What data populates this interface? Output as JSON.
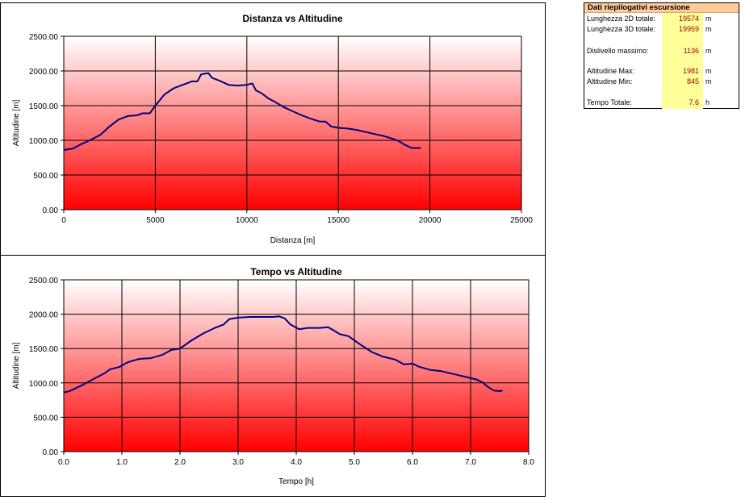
{
  "chart_data": [
    {
      "type": "line",
      "title": "Distanza vs Altitudine",
      "xlabel": "Distanza [m]",
      "ylabel": "Altitudine [m]",
      "xlim": [
        0,
        25000
      ],
      "ylim": [
        0,
        2500
      ],
      "xticks": [
        "0",
        "5000",
        "10000",
        "15000",
        "20000",
        "25000"
      ],
      "yticks": [
        "0.00",
        "500.00",
        "1000.00",
        "1500.00",
        "2000.00",
        "2500.00"
      ],
      "grid": true,
      "series": [
        {
          "line_color": "#000080",
          "x": [
            0,
            500,
            1000,
            1500,
            2000,
            2500,
            3000,
            3500,
            4000,
            4300,
            4700,
            5000,
            5500,
            6000,
            6500,
            7000,
            7300,
            7500,
            7700,
            7900,
            8100,
            8500,
            9000,
            9500,
            10000,
            10300,
            10500,
            10800,
            11200,
            11500,
            12000,
            12500,
            13000,
            13500,
            14000,
            14300,
            14600,
            15000,
            15500,
            16000,
            16500,
            17000,
            17500,
            18000,
            18300,
            18600,
            19000,
            19500
          ],
          "y": [
            860,
            880,
            950,
            1010,
            1080,
            1200,
            1300,
            1350,
            1360,
            1390,
            1390,
            1500,
            1660,
            1750,
            1800,
            1850,
            1850,
            1950,
            1960,
            1970,
            1900,
            1860,
            1800,
            1790,
            1800,
            1820,
            1720,
            1680,
            1600,
            1560,
            1480,
            1420,
            1360,
            1310,
            1270,
            1270,
            1200,
            1180,
            1170,
            1150,
            1120,
            1090,
            1060,
            1020,
            990,
            940,
            890,
            890
          ]
        }
      ]
    },
    {
      "type": "line",
      "title": "Tempo vs Altitudine",
      "xlabel": "Tempo [h]",
      "ylabel": "Altitudine [m]",
      "xlim": [
        0,
        8
      ],
      "ylim": [
        0,
        2500
      ],
      "xticks": [
        "0.0",
        "1.0",
        "2.0",
        "3.0",
        "4.0",
        "5.0",
        "6.0",
        "7.0",
        "8.0"
      ],
      "yticks": [
        "0.00",
        "500.00",
        "1000.00",
        "1500.00",
        "2000.00",
        "2500.00"
      ],
      "grid": true,
      "series": [
        {
          "line_color": "#000080",
          "x": [
            0,
            0.1,
            0.3,
            0.5,
            0.7,
            0.8,
            0.95,
            1.1,
            1.3,
            1.5,
            1.7,
            1.85,
            2.0,
            2.2,
            2.4,
            2.6,
            2.75,
            2.85,
            3.0,
            3.2,
            3.4,
            3.6,
            3.7,
            3.8,
            3.9,
            4.05,
            4.2,
            4.4,
            4.55,
            4.65,
            4.75,
            4.9,
            5.1,
            5.3,
            5.5,
            5.7,
            5.85,
            6.0,
            6.1,
            6.3,
            6.5,
            6.7,
            6.9,
            7.1,
            7.2,
            7.3,
            7.4,
            7.5,
            7.55
          ],
          "y": [
            860,
            880,
            960,
            1050,
            1140,
            1200,
            1230,
            1300,
            1350,
            1360,
            1410,
            1480,
            1500,
            1620,
            1720,
            1800,
            1850,
            1930,
            1950,
            1960,
            1960,
            1960,
            1970,
            1940,
            1850,
            1780,
            1800,
            1800,
            1810,
            1760,
            1710,
            1680,
            1560,
            1450,
            1380,
            1340,
            1270,
            1280,
            1240,
            1190,
            1170,
            1130,
            1090,
            1050,
            1010,
            940,
            890,
            880,
            890
          ]
        }
      ]
    }
  ],
  "summary": {
    "title": "Dati riepilogativi escursione",
    "rows": [
      {
        "label": "Lunghezza 2D totale:",
        "value": "19574",
        "unit": "m"
      },
      {
        "label": "Lunghezza 3D totale:",
        "value": "19959",
        "unit": "m"
      },
      {
        "label": "Dislivello massimo:",
        "value": "1136",
        "unit": "m"
      },
      {
        "label": "Altitudine Max:",
        "value": "1981",
        "unit": "m"
      },
      {
        "label": "Altitudine Min:",
        "value": "845",
        "unit": "m"
      },
      {
        "label": "Tempo Totale:",
        "value": "7.6",
        "unit": "h"
      }
    ]
  }
}
